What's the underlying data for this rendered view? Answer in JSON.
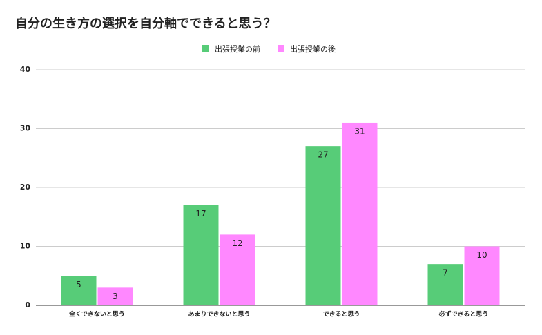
{
  "chart_data": {
    "type": "bar",
    "title": "自分の生き方の選択を自分軸でできると思う？",
    "categories": [
      "全くできないと思う",
      "あまりできないと思う",
      "できると思う",
      "必ずできると思う"
    ],
    "series": [
      {
        "name": "出張授業の前",
        "color": "#57cc78",
        "values": [
          5,
          17,
          27,
          7
        ]
      },
      {
        "name": "出張授業の後",
        "color": "#ff88ff",
        "values": [
          3,
          12,
          31,
          10
        ]
      }
    ],
    "ylim": [
      0,
      40
    ],
    "yticks": [
      0,
      10,
      20,
      30,
      40
    ],
    "grid": true,
    "legend": "top"
  }
}
